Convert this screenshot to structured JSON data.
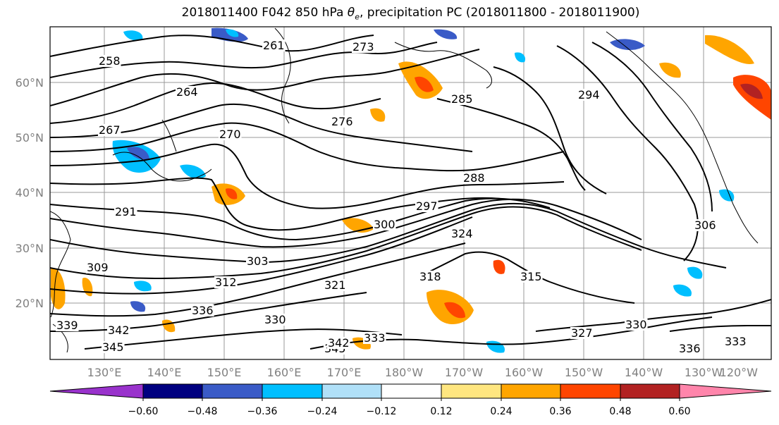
{
  "title": {
    "prefix": "2018011400 F042 850 hPa ",
    "symbol": "θ",
    "subscript": "e",
    "suffix": ", precipitation PC (2018011800 - 2018011900)"
  },
  "map": {
    "lat_labels": [
      "60°N",
      "50°N",
      "40°N",
      "30°N",
      "20°N"
    ],
    "lon_labels": [
      "130°E",
      "140°E",
      "150°E",
      "160°E",
      "170°E",
      "180°W",
      "170°W",
      "160°W",
      "150°W",
      "140°W",
      "130°W",
      "120°W"
    ],
    "contour_labels": [
      "258",
      "261",
      "273",
      "264",
      "267",
      "270",
      "276",
      "285",
      "294",
      "288",
      "291",
      "297",
      "300",
      "324",
      "309",
      "303",
      "312",
      "318",
      "315",
      "321",
      "306",
      "336",
      "339",
      "342",
      "345",
      "333",
      "330",
      "327"
    ]
  },
  "colorbar": {
    "ticks": [
      "−0.60",
      "−0.48",
      "−0.36",
      "−0.24",
      "−0.12",
      "0.12",
      "0.24",
      "0.36",
      "0.48",
      "0.60"
    ],
    "colors": {
      "c0": "#9932cc",
      "c1": "#000080",
      "c2": "#3a5bc7",
      "c3": "#00bfff",
      "c4": "#b0e0f8",
      "c5": "#ffffff",
      "c6": "#ffe680",
      "c7": "#ffa500",
      "c8": "#ff4500",
      "c9": "#b22222",
      "c10": "#ff85ab"
    }
  }
}
